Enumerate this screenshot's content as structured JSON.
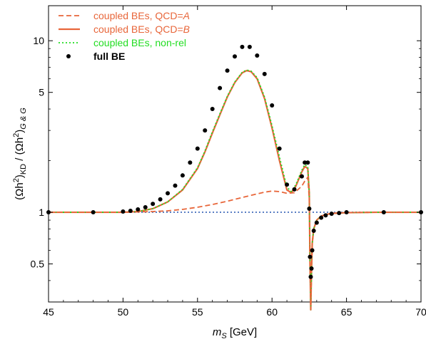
{
  "chart_data": {
    "type": "line",
    "xlabel": {
      "main": "m",
      "sub": "S",
      "unit": " [GeV]"
    },
    "ylabel": {
      "p1": "(Ωh",
      "sup1": "2",
      "p2": ")",
      "sub1": "KD",
      "p3": " / (Ωh",
      "sup2": "2",
      "p4": ")",
      "sub2": "G & G"
    },
    "xlim": [
      45,
      70
    ],
    "ylim": [
      0.3,
      14
    ],
    "yscale": "log",
    "x_ticks": [
      45,
      50,
      55,
      60,
      65,
      70
    ],
    "x_tick_labels": [
      "45",
      "50",
      "55",
      "60",
      "65",
      "70"
    ],
    "y_ticks": [
      0.5,
      1,
      5,
      10
    ],
    "y_tick_labels": [
      "0.5",
      "1",
      "5",
      "10"
    ],
    "reference_line": {
      "y": 1,
      "color": "#5a7fc4"
    },
    "legend": {
      "position": "top-left",
      "entries": [
        {
          "id": "qcdA",
          "prefix": "coupled BEs, QCD=",
          "italic": "A",
          "color": "#e8663a",
          "style": "dashed"
        },
        {
          "id": "qcdB",
          "prefix": "coupled BEs, QCD=",
          "italic": "B",
          "color": "#e8663a",
          "style": "solid"
        },
        {
          "id": "nonrel",
          "prefix": "coupled BEs, non-rel",
          "italic": "",
          "color": "#22dd22",
          "style": "dotted"
        },
        {
          "id": "full",
          "prefix": "full BE",
          "italic": "",
          "color": "#000000",
          "style": "points"
        }
      ]
    },
    "series": [
      {
        "name": "coupled BEs, QCD=A",
        "style": "dashed",
        "color": "#e8663a",
        "x": [
          45,
          48,
          50,
          51,
          52,
          53,
          54,
          55,
          56,
          57,
          58,
          59,
          59.5,
          60,
          60.5,
          61,
          61.5,
          62,
          62.2,
          62.4,
          62.5,
          62.55,
          62.6,
          62.65,
          62.7,
          62.8,
          63,
          63.3,
          63.6,
          64,
          65,
          67,
          70
        ],
        "y": [
          1.0,
          1.0,
          1.0,
          1.005,
          1.01,
          1.02,
          1.04,
          1.07,
          1.11,
          1.16,
          1.22,
          1.28,
          1.31,
          1.33,
          1.32,
          1.29,
          1.3,
          1.42,
          1.52,
          1.6,
          1.2,
          0.5,
          0.27,
          0.45,
          0.66,
          0.8,
          0.9,
          0.95,
          0.97,
          0.985,
          0.995,
          1.0,
          1.0
        ]
      },
      {
        "name": "coupled BEs, QCD=B",
        "style": "solid",
        "color": "#e8663a",
        "x": [
          45,
          48,
          50,
          51,
          52,
          53,
          54,
          55,
          55.5,
          56,
          56.5,
          57,
          57.5,
          58,
          58.3,
          58.6,
          59,
          59.5,
          60,
          60.5,
          61,
          61.3,
          61.6,
          62,
          62.2,
          62.4,
          62.5,
          62.55,
          62.6,
          62.65,
          62.7,
          62.8,
          63,
          63.3,
          63.6,
          64,
          65,
          67,
          70
        ],
        "y": [
          1.0,
          1.0,
          1.0,
          1.01,
          1.05,
          1.15,
          1.35,
          1.8,
          2.25,
          2.9,
          3.7,
          4.7,
          5.7,
          6.5,
          6.7,
          6.6,
          6.0,
          4.6,
          3.1,
          2.0,
          1.35,
          1.3,
          1.42,
          1.72,
          1.85,
          1.8,
          1.3,
          0.5,
          0.27,
          0.45,
          0.66,
          0.8,
          0.9,
          0.95,
          0.97,
          0.985,
          0.995,
          1.0,
          1.0
        ]
      },
      {
        "name": "coupled BEs, non-rel",
        "style": "dotted",
        "color": "#22dd22",
        "x": [
          45,
          48,
          50,
          51,
          52,
          53,
          54,
          55,
          55.5,
          56,
          56.5,
          57,
          57.5,
          58,
          58.3,
          58.6,
          59,
          59.5,
          60,
          60.5,
          61,
          61.3,
          61.6,
          62,
          62.2,
          62.4,
          62.5,
          62.55,
          62.6,
          62.65,
          62.7,
          62.8,
          63,
          63.3,
          63.6,
          64,
          65,
          67,
          70
        ],
        "y": [
          1.0,
          1.0,
          1.0,
          1.01,
          1.05,
          1.15,
          1.36,
          1.82,
          2.28,
          2.95,
          3.75,
          4.75,
          5.75,
          6.55,
          6.75,
          6.65,
          6.1,
          4.7,
          3.2,
          2.1,
          1.4,
          1.32,
          1.45,
          1.76,
          1.9,
          1.85,
          1.3,
          0.5,
          0.27,
          0.45,
          0.66,
          0.8,
          0.9,
          0.95,
          0.97,
          0.985,
          0.995,
          1.0,
          1.0
        ]
      },
      {
        "name": "full BE",
        "style": "points",
        "color": "#000000",
        "x": [
          45,
          48,
          50,
          50.5,
          51,
          51.5,
          52,
          52.5,
          53,
          53.5,
          54,
          54.5,
          55,
          55.5,
          56,
          56.5,
          57,
          57.5,
          58,
          58.5,
          59,
          59.5,
          60,
          60.5,
          61,
          61.5,
          62,
          62.2,
          62.4,
          62.5,
          62.55,
          62.6,
          62.65,
          62.7,
          62.8,
          63,
          63.3,
          63.6,
          64,
          64.5,
          65,
          67.5,
          70
        ],
        "y": [
          1.0,
          1.0,
          1.01,
          1.02,
          1.04,
          1.07,
          1.12,
          1.19,
          1.29,
          1.43,
          1.64,
          1.95,
          2.35,
          3.0,
          4.0,
          5.3,
          6.7,
          8.1,
          9.2,
          9.2,
          8.2,
          6.4,
          4.2,
          2.35,
          1.45,
          1.36,
          1.62,
          1.95,
          1.95,
          1.05,
          0.55,
          0.42,
          0.47,
          0.6,
          0.78,
          0.87,
          0.93,
          0.96,
          0.98,
          0.99,
          1.0,
          1.0,
          1.0
        ]
      }
    ]
  }
}
